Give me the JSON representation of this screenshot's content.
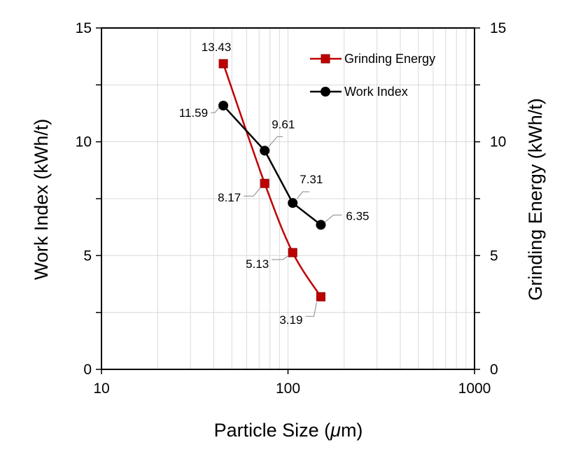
{
  "chart_data": {
    "type": "line",
    "x_scale": "log",
    "xlim": [
      10,
      1000
    ],
    "ylim": [
      0,
      15
    ],
    "y2lim": [
      0,
      15
    ],
    "grid": true,
    "xlabel_prefix": "Particle Size (",
    "xlabel_unit": "μ",
    "xlabel_suffix": "m)",
    "ylabel": "Work Index (kWh/t)",
    "y2label": "Grinding Energy (kWh/t)",
    "x_ticks": [
      "10",
      "100",
      "1000"
    ],
    "y_ticks": [
      "0",
      "5",
      "10",
      "15"
    ],
    "y2_ticks": [
      "0",
      "5",
      "10",
      "15"
    ],
    "legend_position": "top-right",
    "series": [
      {
        "name": "Grinding Energy",
        "axis": "right",
        "color": "#c00000",
        "marker": "square",
        "x": [
          45,
          75,
          106,
          150
        ],
        "values": [
          13.43,
          8.17,
          5.13,
          3.19
        ],
        "labels": [
          "13.43",
          "8.17",
          "5.13",
          "3.19"
        ]
      },
      {
        "name": "Work Index",
        "axis": "left",
        "color": "#000000",
        "marker": "circle",
        "x": [
          45,
          75,
          106,
          150
        ],
        "values": [
          11.59,
          9.61,
          7.31,
          6.35
        ],
        "labels": [
          "11.59",
          "9.61",
          "7.31",
          "6.35"
        ]
      }
    ]
  }
}
